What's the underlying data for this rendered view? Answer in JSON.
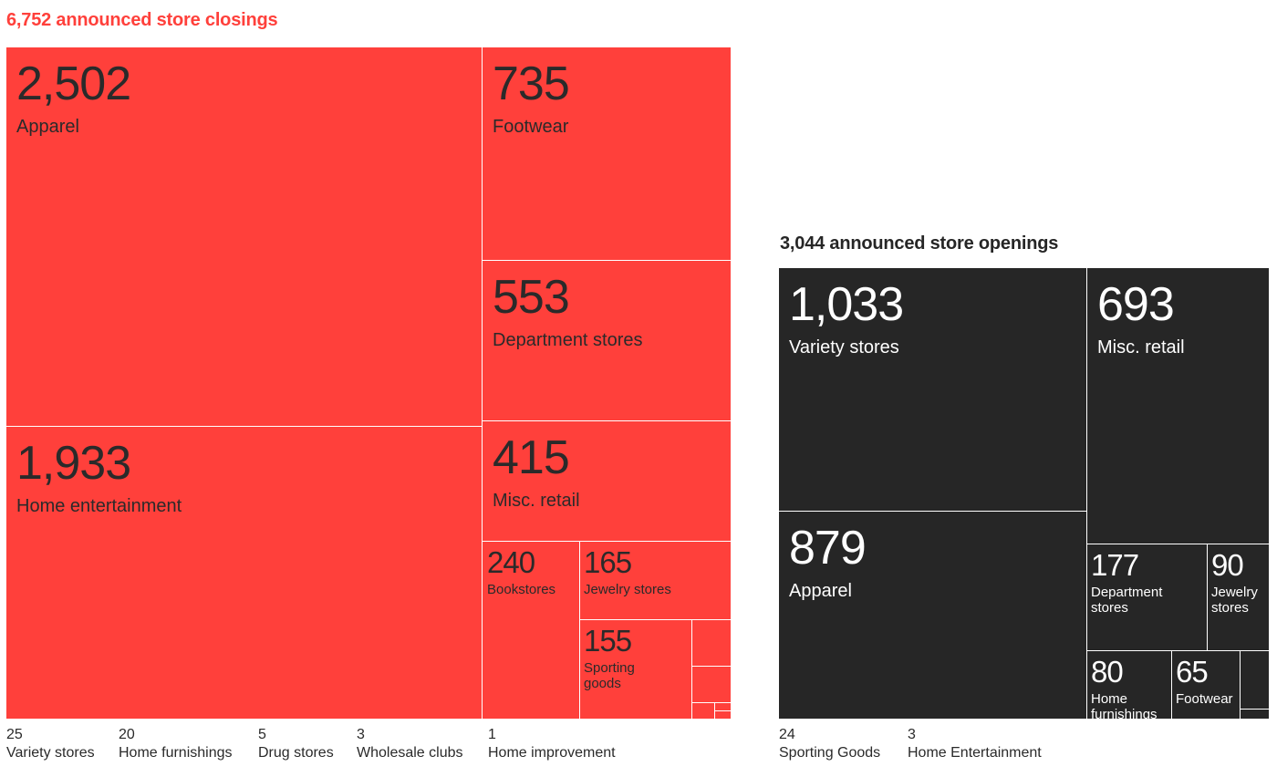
{
  "closings": {
    "title": "6,752 announced store closings",
    "color": "#ff403b",
    "text_color": "#2a2a2a",
    "total": 6752,
    "items": [
      {
        "value": "2,502",
        "label": "Apparel"
      },
      {
        "value": "1,933",
        "label": "Home entertainment"
      },
      {
        "value": "735",
        "label": "Footwear"
      },
      {
        "value": "553",
        "label": "Department stores"
      },
      {
        "value": "415",
        "label": "Misc. retail"
      },
      {
        "value": "240",
        "label": "Bookstores"
      },
      {
        "value": "165",
        "label": "Jewelry stores"
      },
      {
        "value": "155",
        "label": "Sporting goods"
      }
    ],
    "small_items": [
      {
        "value": "25",
        "label": "Variety stores"
      },
      {
        "value": "20",
        "label": "Home furnishings"
      },
      {
        "value": "5",
        "label": "Drug stores"
      },
      {
        "value": "3",
        "label": "Wholesale clubs"
      },
      {
        "value": "1",
        "label": "Home improvement"
      }
    ]
  },
  "openings": {
    "title": "3,044 announced store openings",
    "color": "#262626",
    "text_color": "#ffffff",
    "total": 3044,
    "items": [
      {
        "value": "1,033",
        "label": "Variety stores"
      },
      {
        "value": "879",
        "label": "Apparel"
      },
      {
        "value": "693",
        "label": "Misc. retail"
      },
      {
        "value": "177",
        "label": "Department stores"
      },
      {
        "value": "90",
        "label": "Jewelry stores"
      },
      {
        "value": "80",
        "label": "Home furnishings"
      },
      {
        "value": "65",
        "label": "Footwear"
      }
    ],
    "small_items": [
      {
        "value": "24",
        "label": "Sporting Goods"
      },
      {
        "value": "3",
        "label": "Home Entertainment"
      }
    ]
  },
  "chart_data": [
    {
      "type": "treemap",
      "title": "6,752 announced store closings",
      "categories": [
        "Apparel",
        "Home entertainment",
        "Footwear",
        "Department stores",
        "Misc. retail",
        "Bookstores",
        "Jewelry stores",
        "Sporting goods",
        "Variety stores",
        "Home furnishings",
        "Drug stores",
        "Wholesale clubs",
        "Home improvement"
      ],
      "values": [
        2502,
        1933,
        735,
        553,
        415,
        240,
        165,
        155,
        25,
        20,
        5,
        3,
        1
      ],
      "color": "#ff403b"
    },
    {
      "type": "treemap",
      "title": "3,044 announced store openings",
      "categories": [
        "Variety stores",
        "Apparel",
        "Misc. retail",
        "Department stores",
        "Jewelry stores",
        "Home furnishings",
        "Footwear",
        "Sporting Goods",
        "Home Entertainment"
      ],
      "values": [
        1033,
        879,
        693,
        177,
        90,
        80,
        65,
        24,
        3
      ],
      "color": "#262626"
    }
  ]
}
